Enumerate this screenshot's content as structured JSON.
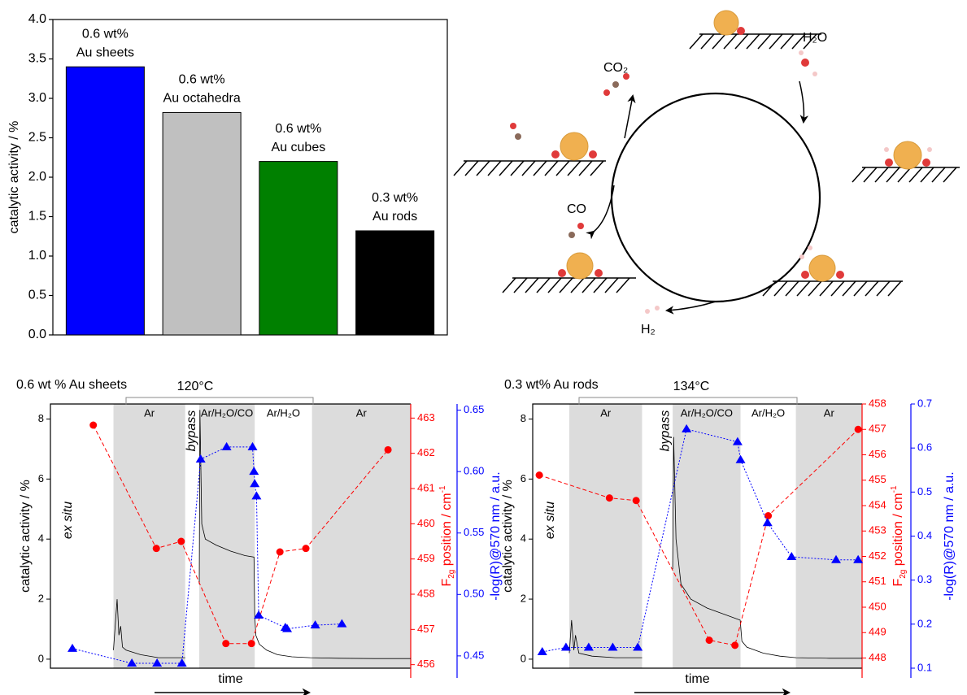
{
  "chart_data": [
    {
      "type": "bar",
      "ylabel": "catalytic activity / %",
      "categories": [
        [
          "0.6 wt%",
          "Au sheets"
        ],
        [
          "0.6 wt%",
          "Au octahedra"
        ],
        [
          "0.6 wt%",
          "Au cubes"
        ],
        [
          "0.3 wt%",
          "Au rods"
        ]
      ],
      "values": [
        3.4,
        2.82,
        2.2,
        1.32
      ],
      "colors": [
        "#0000ff",
        "#c0c0c0",
        "#008000",
        "#000000"
      ],
      "ylim": [
        0,
        4
      ],
      "yticks": [
        {
          "value": 0,
          "label": "0.0"
        },
        {
          "value": 0.5,
          "label": "0.5"
        },
        {
          "value": 1,
          "label": "1.0"
        },
        {
          "value": 1.5,
          "label": "1.5"
        },
        {
          "value": 2,
          "label": "2.0"
        },
        {
          "value": 2.5,
          "label": "2.5"
        },
        {
          "value": 3,
          "label": "3.0"
        },
        {
          "value": 3.5,
          "label": "3.5"
        },
        {
          "value": 4,
          "label": "4.0"
        }
      ]
    },
    {
      "type": "multiaxis",
      "title": "0.6 wt % Au sheets",
      "annotation": "120°C",
      "xlabel": "time",
      "ylabel": "catalytic activity / %",
      "y2label": [
        "F",
        "2g",
        " position / cm",
        "-1"
      ],
      "y3label": "-log(R)@570 nm / a.u.",
      "side_label": "ex situ",
      "bypass_label": "bypass",
      "regions": [
        {
          "label": "Ar",
          "x": [
            17.5,
            37.4
          ],
          "shaded": true
        },
        {
          "label": "Ar/H₂O/CO",
          "x": [
            41.3,
            56.7
          ],
          "shaded": true
        },
        {
          "label": "Ar/H₂O",
          "x": [
            56.7,
            72.6
          ],
          "shaded": false
        },
        {
          "label": "Ar",
          "x": [
            72.6,
            100
          ],
          "shaded": true
        }
      ],
      "xlim": [
        0,
        100
      ],
      "ylim": [
        -0.3,
        8.5
      ],
      "yticks": [
        0,
        2,
        4,
        6,
        8
      ],
      "y2lim": [
        455.9,
        463.4
      ],
      "y2ticks": [
        456,
        457,
        458,
        459,
        460,
        461,
        462,
        463
      ],
      "y3lim": [
        0.44,
        0.655
      ],
      "y3ticks": [
        0.45,
        {
          "value": 0.5,
          "label": "0.50"
        },
        0.55,
        {
          "value": 0.6,
          "label": "0.60"
        },
        0.65
      ],
      "series": [
        {
          "color": "#000000",
          "linestyle": "solid",
          "marker": "none",
          "x": [
            17.5,
            18.5,
            19,
            19.5,
            20,
            21,
            25,
            30,
            37.4,
            39,
            41.3,
            41.5,
            42,
            43,
            46,
            50,
            54,
            56.5,
            56.7,
            57,
            58,
            60,
            63,
            67,
            72,
            80,
            90,
            100
          ],
          "values": [
            0.3,
            2.0,
            0.8,
            1.1,
            0.4,
            0.3,
            0.15,
            0.05,
            0.05,
            null,
            2.5,
            8.3,
            4.5,
            4.0,
            3.8,
            3.6,
            3.45,
            3.4,
            1.5,
            0.8,
            0.5,
            0.3,
            0.15,
            0.08,
            0.05,
            0.03,
            0.02,
            0.02
          ]
        },
        {
          "color": "#ff0000",
          "axis": "y2",
          "linestyle": "dashed",
          "marker": "circle",
          "x": [
            11.9,
            29.4,
            36.3,
            48.7,
            55.8,
            63.7,
            70.9,
            93.7
          ],
          "values": [
            462.8,
            459.3,
            459.5,
            456.6,
            456.6,
            459.2,
            459.3,
            462.1
          ]
        },
        {
          "color": "#0000ff",
          "axis": "y3",
          "linestyle": "dotted",
          "marker": "triangle",
          "x": [
            6.1,
            22.6,
            29.6,
            36.5,
            41.7,
            48.9,
            56.1,
            56.5,
            56.7,
            57.2,
            57.8,
            65.2,
            65.7,
            73.5,
            80.9
          ],
          "values": [
            0.456,
            0.444,
            0.444,
            0.444,
            0.61,
            0.62,
            0.62,
            0.6,
            0.59,
            0.58,
            0.483,
            0.473,
            0.472,
            0.475,
            0.476
          ]
        }
      ]
    },
    {
      "type": "multiaxis",
      "title": "0.3 wt% Au rods",
      "annotation": "134°C",
      "xlabel": "time",
      "ylabel": "catalytic activity / %",
      "y2label": [
        "F",
        "2g",
        " position / cm",
        "-1"
      ],
      "y3label": "-log(R)@570 nm / a.u.",
      "side_label": "ex situ",
      "bypass_label": "bypass",
      "regions": [
        {
          "label": "Ar",
          "x": [
            11.1,
            33.2
          ],
          "shaded": true
        },
        {
          "label": "Ar/H₂O/CO",
          "x": [
            42.5,
            63.1
          ],
          "shaded": true
        },
        {
          "label": "Ar/H₂O",
          "x": [
            63.1,
            79.9
          ],
          "shaded": false
        },
        {
          "label": "Ar",
          "x": [
            79.9,
            100
          ],
          "shaded": true
        }
      ],
      "xlim": [
        0,
        100
      ],
      "ylim": [
        -0.3,
        8.5
      ],
      "yticks": [
        0,
        2,
        4,
        6,
        8
      ],
      "y2lim": [
        447.6,
        458
      ],
      "y2ticks": [
        448,
        449,
        450,
        451,
        452,
        453,
        454,
        455,
        456,
        457,
        458
      ],
      "y3lim": [
        0.1,
        0.7
      ],
      "y3ticks": [
        0.1,
        0.2,
        0.3,
        0.4,
        0.5,
        0.6,
        0.7
      ],
      "series": [
        {
          "color": "#000000",
          "linestyle": "solid",
          "marker": "none",
          "x": [
            11.1,
            11.8,
            12.5,
            13,
            14,
            18,
            25,
            33.2,
            38,
            42.5,
            42.8,
            43.5,
            45,
            48,
            53,
            58,
            63,
            63.5,
            65,
            70,
            75,
            80,
            90,
            100
          ],
          "values": [
            0.2,
            1.3,
            0.3,
            0.8,
            0.2,
            0.1,
            0.05,
            0.05,
            null,
            3.0,
            7.4,
            4.0,
            2.5,
            2.0,
            1.7,
            1.5,
            1.3,
            0.6,
            0.4,
            0.2,
            0.1,
            0.05,
            0.03,
            0.03
          ]
        },
        {
          "color": "#ff0000",
          "axis": "y2",
          "linestyle": "dashed",
          "marker": "circle",
          "x": [
            2.0,
            23.3,
            31.4,
            53.6,
            61.4,
            71.5,
            98.8
          ],
          "values": [
            455.2,
            454.3,
            454.2,
            448.7,
            448.5,
            453.6,
            457
          ]
        },
        {
          "color": "#0000ff",
          "axis": "y3",
          "linestyle": "dotted",
          "marker": "triangle",
          "x": [
            2.9,
            10.1,
            17,
            24.3,
            31.9,
            46.7,
            62.2,
            63.1,
            71.3,
            78.6,
            92.1,
            98.8
          ],
          "values": [
            0.137,
            0.147,
            0.147,
            0.147,
            0.147,
            0.643,
            0.614,
            0.573,
            0.43,
            0.353,
            0.346,
            0.346
          ]
        }
      ]
    }
  ],
  "diagram": {
    "labels": [
      "CO₂",
      "H₂O",
      "CO",
      "H₂"
    ]
  }
}
